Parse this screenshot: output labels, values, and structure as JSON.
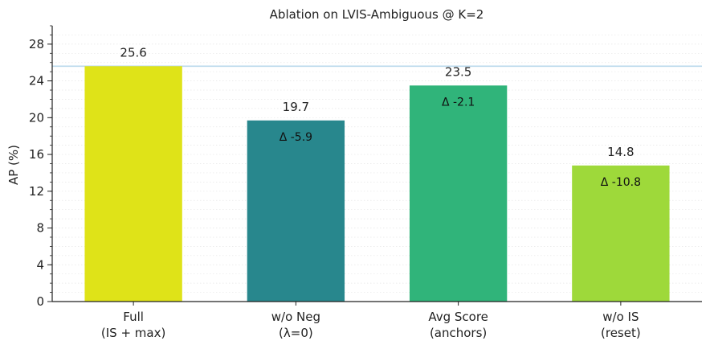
{
  "chart_data": {
    "type": "bar",
    "title": "Ablation on LVIS-Ambiguous @ K=2",
    "xlabel": "",
    "ylabel": "AP (%)",
    "ylim": [
      0,
      30
    ],
    "yticks": [
      0,
      4,
      8,
      12,
      16,
      20,
      24,
      28
    ],
    "categories": [
      [
        "Full",
        "(IS + max)"
      ],
      [
        "w/o Neg",
        "(λ=0)"
      ],
      [
        "Avg Score",
        "(anchors)"
      ],
      [
        "w/o IS",
        "(reset)"
      ]
    ],
    "values": [
      25.6,
      19.7,
      23.5,
      14.8
    ],
    "value_labels": [
      "25.6",
      "19.7",
      "23.5",
      "14.8"
    ],
    "delta_labels": [
      "",
      "Δ -5.9",
      "Δ -2.1",
      "Δ -10.8"
    ],
    "colors": [
      "#dfe318",
      "#28878d",
      "#30b47a",
      "#9ed93a"
    ],
    "reference_line": {
      "value": 25.6,
      "color": "#b9d8ec"
    },
    "grid": "horizontal-minor-dotted"
  }
}
